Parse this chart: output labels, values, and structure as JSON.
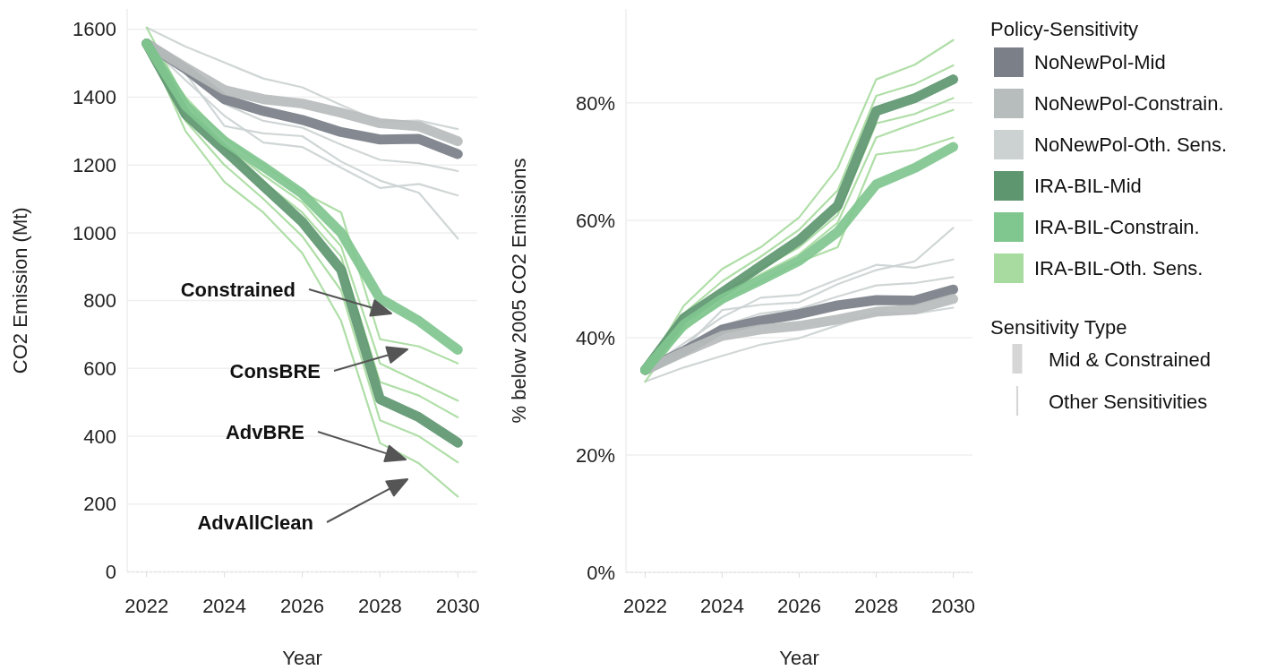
{
  "chart_data": [
    {
      "type": "line",
      "xlabel": "Year",
      "ylabel": "CO2 Emission (Mt)",
      "x": [
        2022,
        2023,
        2024,
        2025,
        2026,
        2027,
        2028,
        2029,
        2030
      ],
      "xlim": [
        2021.5,
        2030.5
      ],
      "xticks": [
        2022,
        2024,
        2026,
        2028,
        2030
      ],
      "ylim": [
        0,
        1660
      ],
      "yticks": [
        0,
        200,
        400,
        600,
        800,
        1000,
        1200,
        1400,
        1600
      ],
      "grid": "y",
      "line_style": "solid",
      "series": [
        {
          "color": "#7a7f88",
          "values": [
            1558,
            1483,
            1394,
            1359,
            1333,
            1297,
            1275,
            1277,
            1232
          ]
        },
        {
          "color": "#b7bcbc",
          "values": [
            1558,
            1488,
            1421,
            1394,
            1381,
            1354,
            1323,
            1314,
            1270
          ]
        },
        {
          "color": "#ccd2d2",
          "values": [
            1605,
            1549,
            1502,
            1455,
            1429,
            1377,
            1328,
            1331,
            1306
          ]
        },
        {
          "color": "#ccd2d2",
          "values": [
            1558,
            1475,
            1380,
            1330,
            1310,
            1260,
            1215,
            1205,
            1182
          ]
        },
        {
          "color": "#ccd2d2",
          "values": [
            1558,
            1450,
            1345,
            1266,
            1253,
            1192,
            1132,
            1144,
            1110
          ]
        },
        {
          "color": "#ccd2d2",
          "values": [
            1558,
            1470,
            1315,
            1293,
            1285,
            1210,
            1154,
            1118,
            983
          ]
        },
        {
          "color": "#5e9670",
          "values": [
            1558,
            1350,
            1244,
            1138,
            1032,
            891,
            509,
            456,
            381
          ]
        },
        {
          "color": "#80c68f",
          "values": [
            1558,
            1375,
            1270,
            1195,
            1115,
            1000,
            806,
            740,
            655
          ]
        },
        {
          "color": "#a8dba0",
          "values": [
            1558,
            1400,
            1280,
            1200,
            1120,
            1060,
            686,
            665,
            615
          ]
        },
        {
          "color": "#a8dba0",
          "values": [
            1558,
            1370,
            1260,
            1170,
            1090,
            960,
            615,
            560,
            505
          ]
        },
        {
          "color": "#a8dba0",
          "values": [
            1605,
            1390,
            1250,
            1150,
            1060,
            930,
            560,
            520,
            456
          ]
        },
        {
          "color": "#a8dba0",
          "values": [
            1558,
            1330,
            1200,
            1100,
            990,
            830,
            447,
            400,
            323
          ]
        },
        {
          "color": "#a8dba0",
          "values": [
            1558,
            1300,
            1150,
            1060,
            940,
            740,
            380,
            320,
            222
          ]
        }
      ],
      "annotations": [
        "Constrained",
        "ConsBRE",
        "AdvBRE",
        "AdvAllClean"
      ]
    },
    {
      "type": "line",
      "xlabel": "Year",
      "ylabel": "% below 2005 CO2 Emissions",
      "x": [
        2022,
        2023,
        2024,
        2025,
        2026,
        2027,
        2028,
        2029,
        2030
      ],
      "xlim": [
        2021.5,
        2030.5
      ],
      "xticks": [
        2022,
        2024,
        2026,
        2028,
        2030
      ],
      "ylim": [
        0,
        96
      ],
      "yticks": [
        {
          "value": 0,
          "label": "0%"
        },
        {
          "value": 20,
          "label": "20%"
        },
        {
          "value": 40,
          "label": "40%"
        },
        {
          "value": 60,
          "label": "60%"
        },
        {
          "value": 80,
          "label": "80%"
        }
      ],
      "grid": "y",
      "line_style": "solid",
      "legend": "right",
      "legend_title": "Policy-Sensitivity",
      "series": [
        {
          "name": "NoNewPol-Mid",
          "color": "#7a7f88",
          "values": [
            34.5,
            37.7,
            41.4,
            42.9,
            44.0,
            45.5,
            46.4,
            46.3,
            48.2
          ]
        },
        {
          "name": "NoNewPol-Constrain.",
          "color": "#b7bcbc",
          "values": [
            34.5,
            37.5,
            40.3,
            41.4,
            42.0,
            43.1,
            44.4,
            44.8,
            46.6
          ]
        },
        {
          "name": "NoNewPol-Oth. Sens.",
          "color": "#ccd2d2",
          "values": [
            32.5,
            34.9,
            36.9,
            38.8,
            39.9,
            42.1,
            44.2,
            44.1,
            45.1
          ]
        },
        {
          "color": "#ccd2d2",
          "values": [
            34.5,
            38.0,
            42.0,
            44.1,
            44.9,
            47.0,
            48.9,
            49.3,
            50.3
          ]
        },
        {
          "color": "#ccd2d2",
          "values": [
            34.5,
            39.0,
            43.5,
            46.8,
            47.3,
            49.9,
            52.4,
            51.9,
            53.3
          ]
        },
        {
          "color": "#ccd2d2",
          "values": [
            34.5,
            38.2,
            44.7,
            45.6,
            46.0,
            49.1,
            51.5,
            53.0,
            58.7
          ]
        },
        {
          "name": "IRA-BIL-Mid",
          "color": "#5e9670",
          "values": [
            34.5,
            43.3,
            47.7,
            52.2,
            56.6,
            62.5,
            78.6,
            80.8,
            84.0
          ]
        },
        {
          "name": "IRA-BIL-Constrain.",
          "color": "#80c68f",
          "values": [
            34.5,
            42.2,
            46.6,
            49.8,
            53.1,
            58.0,
            66.1,
            68.9,
            72.5
          ]
        },
        {
          "name": "IRA-BIL-Oth. Sens.",
          "color": "#a8dba0",
          "values": [
            34.5,
            41.2,
            46.2,
            49.6,
            52.9,
            55.4,
            71.2,
            72.0,
            74.1
          ]
        },
        {
          "color": "#a8dba0",
          "values": [
            34.5,
            42.4,
            47.0,
            50.8,
            54.2,
            59.6,
            74.1,
            76.5,
            78.8
          ]
        },
        {
          "color": "#a8dba0",
          "values": [
            32.5,
            41.6,
            47.5,
            51.7,
            55.4,
            60.9,
            76.5,
            78.1,
            80.8
          ]
        },
        {
          "color": "#a8dba0",
          "values": [
            34.5,
            44.1,
            49.6,
            53.8,
            58.4,
            65.1,
            81.2,
            83.2,
            86.4
          ]
        },
        {
          "color": "#a8dba0",
          "values": [
            34.5,
            45.4,
            51.7,
            55.4,
            60.5,
            68.9,
            84.0,
            86.5,
            90.7
          ]
        }
      ],
      "annotations": [
        "Sensitivity Type",
        "Mid & Constrained",
        "Other Sensitivities"
      ]
    }
  ]
}
